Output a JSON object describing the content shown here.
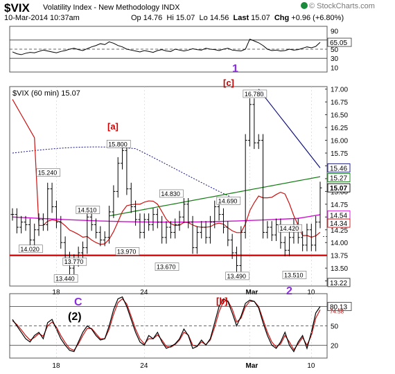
{
  "header": {
    "symbol": "$VIX",
    "description": "Volatility Index - New Methodology INDX",
    "date": "10-Mar-2014 10:37am",
    "op_label": "Op",
    "op": "14.76",
    "hi_label": "Hi",
    "hi": "15.07",
    "lo_label": "Lo",
    "lo": "14.56",
    "last_label": "Last",
    "last": "15.07",
    "chg_label": "Chg",
    "chg": "+0.96 (+6.80%)",
    "watermark": "© StockCharts.com"
  },
  "colors": {
    "price": "#000000",
    "ma_red": "#cc1111",
    "ma_green": "#0e7a0e",
    "ma_magenta": "#d010d0",
    "ma_navy": "#10107a",
    "support": "#e01010",
    "wave_purple": "#8a2be2",
    "wave_red": "#cc0000",
    "stoch_k": "#000000",
    "stoch_d": "#cc1111"
  },
  "chart_data": [
    {
      "type": "line",
      "panel": "rsi",
      "y_ticks": [
        "90",
        "70",
        "50",
        "30",
        "10"
      ],
      "ylim": [
        0,
        100
      ],
      "reference_lines": [
        70,
        50,
        30
      ],
      "last_label": "65.05",
      "values": [
        44,
        40,
        38,
        41,
        43,
        42,
        45,
        48,
        46,
        44,
        42,
        45,
        47,
        50,
        52,
        49,
        47,
        51,
        55,
        58,
        62,
        60,
        66,
        63,
        58,
        55,
        50,
        48,
        46,
        44,
        47,
        45,
        43,
        47,
        49,
        46,
        45,
        50,
        48,
        46,
        48,
        51,
        49,
        48,
        52,
        50,
        49,
        47,
        50,
        52,
        48,
        47,
        46,
        50,
        72,
        68,
        64,
        58,
        50,
        47,
        48,
        46,
        47,
        50,
        48,
        49,
        52,
        55,
        53,
        56,
        65
      ]
    },
    {
      "type": "ohlc",
      "panel": "price",
      "title": "$VIX (60 min) 15.07",
      "x_tick_labels": [
        "18",
        "24",
        "Mar",
        "10"
      ],
      "ylim": [
        13.15,
        17.05
      ],
      "y_ticks": [
        "17.00",
        "16.75",
        "16.50",
        "16.25",
        "16.00",
        "15.75",
        "15.50",
        "15.25",
        "15.00",
        "14.75",
        "14.50",
        "14.25",
        "14.00",
        "13.75",
        "13.50",
        "13.25"
      ],
      "closes": [
        14.55,
        14.3,
        14.4,
        14.35,
        14.05,
        14.25,
        14.45,
        14.35,
        15.05,
        14.7,
        14.4,
        14.0,
        13.7,
        13.5,
        13.65,
        13.8,
        13.9,
        14.5,
        14.35,
        14.2,
        14.05,
        14.1,
        14.6,
        15.0,
        15.55,
        15.8,
        15.05,
        14.7,
        14.45,
        14.2,
        14.45,
        14.35,
        14.55,
        14.4,
        14.1,
        14.3,
        14.2,
        14.35,
        14.5,
        14.75,
        14.4,
        13.9,
        14.2,
        14.3,
        14.1,
        14.4,
        14.7,
        14.55,
        14.3,
        14.05,
        13.8,
        13.55,
        14.2,
        16.0,
        16.7,
        15.95,
        16.0,
        14.2,
        14.3,
        14.15,
        14.35,
        14.0,
        13.85,
        14.1,
        14.35,
        14.1,
        13.95,
        14.25,
        13.95,
        14.4,
        15.07
      ],
      "price_labels": [
        {
          "text": "15.800",
          "value": 15.8
        },
        {
          "text": "15.240",
          "value": 15.24
        },
        {
          "text": "14.510",
          "value": 14.51
        },
        {
          "text": "14.020",
          "value": 14.02
        },
        {
          "text": "13.770",
          "value": 13.77
        },
        {
          "text": "13.440",
          "value": 13.44
        },
        {
          "text": "14.830",
          "value": 14.83
        },
        {
          "text": "13.970",
          "value": 13.97
        },
        {
          "text": "13.670",
          "value": 13.67
        },
        {
          "text": "14.690",
          "value": 14.69
        },
        {
          "text": "13.490",
          "value": 13.49
        },
        {
          "text": "16.780",
          "value": 16.78
        },
        {
          "text": "14.420",
          "value": 14.42
        },
        {
          "text": "13.510",
          "value": 13.51
        }
      ],
      "right_value_labels": [
        {
          "text": "15.46",
          "value": 15.46,
          "color": "#10107a"
        },
        {
          "text": "15.27",
          "value": 15.27,
          "color": "#0e7a0e"
        },
        {
          "text": "15.07",
          "value": 15.07,
          "color": "#000000"
        },
        {
          "text": "14.54",
          "value": 14.54,
          "color": "#d010d0"
        },
        {
          "text": "14.34",
          "value": 14.34,
          "color": "#cc1111"
        },
        {
          "text": "13.22",
          "value": 13.22,
          "color": "#333333"
        }
      ],
      "support_level": 13.75,
      "wave_labels": [
        {
          "text": "1",
          "color": "#8a2be2"
        },
        {
          "text": "[c]",
          "color": "#cc0000"
        },
        {
          "text": "[a]",
          "color": "#cc0000"
        },
        {
          "text": "2",
          "color": "#8a2be2"
        }
      ]
    },
    {
      "type": "line",
      "panel": "stochastic",
      "ylim": [
        0,
        100
      ],
      "y_ticks": [
        "80",
        "50",
        "20"
      ],
      "reference_lines": [
        80,
        50,
        20
      ],
      "last_labels": [
        "80.13",
        "74.58"
      ],
      "x_tick_labels": [
        "18",
        "24",
        "Mar",
        "10"
      ],
      "series": [
        {
          "name": "%K",
          "values": [
            60,
            50,
            40,
            30,
            25,
            35,
            40,
            30,
            55,
            60,
            45,
            30,
            20,
            12,
            10,
            25,
            40,
            50,
            45,
            35,
            28,
            30,
            50,
            75,
            92,
            95,
            80,
            60,
            40,
            25,
            20,
            35,
            30,
            40,
            25,
            15,
            18,
            22,
            30,
            45,
            35,
            15,
            18,
            28,
            20,
            30,
            55,
            80,
            92,
            88,
            70,
            50,
            65,
            85,
            90,
            88,
            78,
            55,
            35,
            20,
            15,
            25,
            40,
            20,
            10,
            25,
            35,
            15,
            40,
            70,
            80
          ]
        },
        {
          "name": "%D",
          "values": [
            58,
            52,
            44,
            35,
            28,
            32,
            38,
            34,
            50,
            56,
            48,
            35,
            24,
            15,
            12,
            22,
            35,
            46,
            46,
            38,
            30,
            30,
            45,
            68,
            86,
            92,
            84,
            65,
            45,
            30,
            22,
            30,
            30,
            36,
            28,
            18,
            17,
            21,
            28,
            40,
            36,
            20,
            18,
            25,
            21,
            28,
            48,
            72,
            88,
            89,
            76,
            56,
            62,
            80,
            88,
            88,
            80,
            60,
            40,
            25,
            17,
            22,
            35,
            25,
            13,
            22,
            32,
            20,
            35,
            62,
            75
          ]
        }
      ],
      "wave_labels": [
        {
          "text": "C",
          "color": "#8a2be2"
        },
        {
          "text": "(2)",
          "color": "#000000"
        },
        {
          "text": "[b]",
          "color": "#cc0000"
        }
      ]
    }
  ]
}
